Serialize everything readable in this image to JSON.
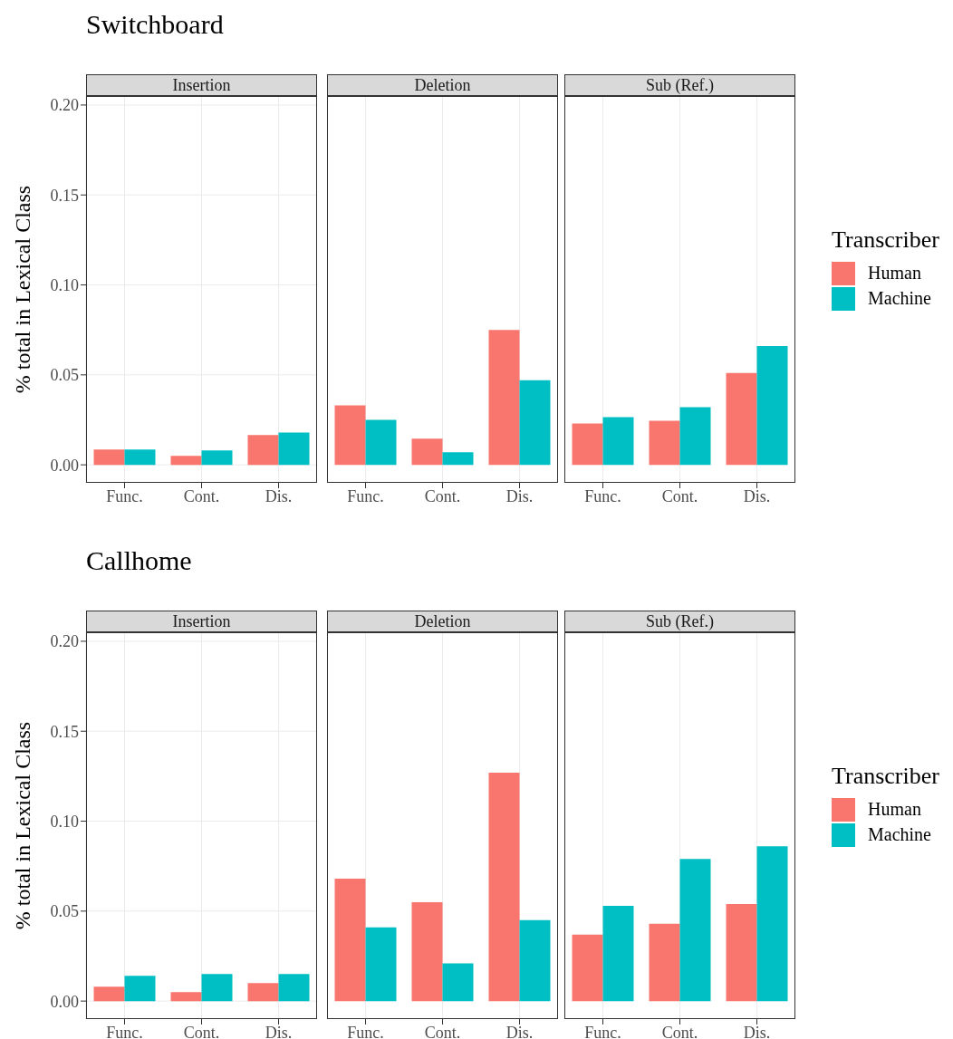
{
  "chart_data": [
    {
      "type": "bar",
      "title": "Switchboard",
      "subtitle": "Insertion",
      "ylabel": "% total in Lexical Class",
      "categories": [
        "Func.",
        "Cont.",
        "Dis."
      ],
      "series": [
        {
          "color": "#f8766d",
          "values": [
            0.0085,
            0.005,
            0.0165
          ]
        },
        {
          "color": "#00bfc4",
          "values": [
            0.0085,
            0.008,
            0.018
          ]
        }
      ],
      "ylim": [
        -0.01,
        0.205
      ],
      "yticks": [
        {
          "value": 0,
          "label": "0.00"
        },
        {
          "value": 0.05,
          "label": "0.05"
        },
        {
          "value": 0.1,
          "label": "0.10"
        },
        {
          "value": 0.15,
          "label": "0.15"
        },
        {
          "value": 0.2,
          "label": "0.20"
        }
      ],
      "grid": true,
      "legend": false
    },
    {
      "type": "bar",
      "subtitle": "Deletion",
      "categories": [
        "Func.",
        "Cont.",
        "Dis."
      ],
      "series": [
        {
          "color": "#f8766d",
          "values": [
            0.033,
            0.0145,
            0.075
          ]
        },
        {
          "color": "#00bfc4",
          "values": [
            0.025,
            0.007,
            0.047
          ]
        }
      ],
      "ylim": [
        -0.01,
        0.205
      ],
      "grid": true,
      "legend": false,
      "tick_labels": "x"
    },
    {
      "type": "bar",
      "subtitle": "Sub (Ref.)",
      "legend_title": "Transcriber",
      "categories": [
        "Func.",
        "Cont.",
        "Dis."
      ],
      "series": [
        {
          "name": "Human",
          "color": "#f8766d",
          "values": [
            0.023,
            0.0245,
            0.051
          ]
        },
        {
          "name": "Machine",
          "color": "#00bfc4",
          "values": [
            0.0265,
            0.032,
            0.066
          ]
        }
      ],
      "ylim": [
        -0.01,
        0.205
      ],
      "grid": true,
      "legend": "right",
      "tick_labels": "x"
    },
    {
      "type": "bar",
      "title": "Callhome",
      "subtitle": "Insertion",
      "ylabel": "% total in Lexical Class",
      "categories": [
        "Func.",
        "Cont.",
        "Dis."
      ],
      "series": [
        {
          "color": "#f8766d",
          "values": [
            0.008,
            0.005,
            0.01
          ]
        },
        {
          "color": "#00bfc4",
          "values": [
            0.014,
            0.015,
            0.015
          ]
        }
      ],
      "ylim": [
        -0.01,
        0.205
      ],
      "yticks": [
        {
          "value": 0,
          "label": "0.00"
        },
        {
          "value": 0.05,
          "label": "0.05"
        },
        {
          "value": 0.1,
          "label": "0.10"
        },
        {
          "value": 0.15,
          "label": "0.15"
        },
        {
          "value": 0.2,
          "label": "0.20"
        }
      ],
      "grid": true,
      "legend": false
    },
    {
      "type": "bar",
      "subtitle": "Deletion",
      "categories": [
        "Func.",
        "Cont.",
        "Dis."
      ],
      "series": [
        {
          "color": "#f8766d",
          "values": [
            0.068,
            0.055,
            0.127
          ]
        },
        {
          "color": "#00bfc4",
          "values": [
            0.041,
            0.021,
            0.045
          ]
        }
      ],
      "ylim": [
        -0.01,
        0.205
      ],
      "grid": true,
      "legend": false,
      "tick_labels": "x"
    },
    {
      "type": "bar",
      "subtitle": "Sub (Ref.)",
      "legend_title": "Transcriber",
      "categories": [
        "Func.",
        "Cont.",
        "Dis."
      ],
      "series": [
        {
          "name": "Human",
          "color": "#f8766d",
          "values": [
            0.037,
            0.043,
            0.054
          ]
        },
        {
          "name": "Machine",
          "color": "#00bfc4",
          "values": [
            0.053,
            0.079,
            0.086
          ]
        }
      ],
      "ylim": [
        -0.01,
        0.205
      ],
      "grid": true,
      "legend": "right",
      "tick_labels": "x"
    }
  ]
}
